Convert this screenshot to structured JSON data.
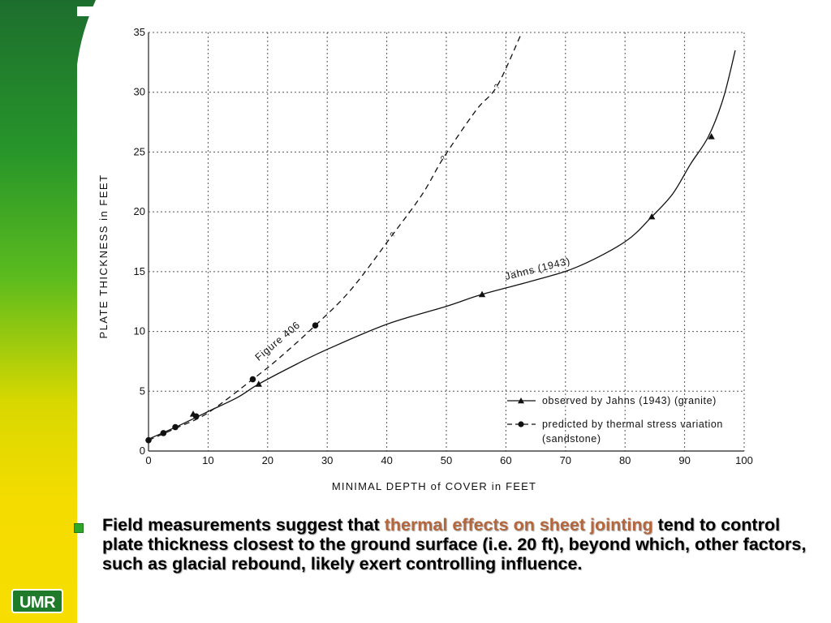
{
  "bullet": {
    "text_before": "Field measurements suggest that ",
    "highlight": "thermal effects on sheet jointing",
    "text_after": " tend to control plate thickness closest to the ground surface (i.e. 20 ft), beyond which, other factors, such as glacial rebound, likely exert controlling influence."
  },
  "logo": {
    "text": "UMR"
  },
  "colors": {
    "green_dark": "#1d6e2e",
    "green": "#2ea82a",
    "yellow": "#f5dc00",
    "highlight": "#b4663c",
    "bullet": "#2fa828"
  },
  "chart_data": {
    "type": "line",
    "xlabel": "MINIMAL DEPTH of COVER in FEET",
    "ylabel": "PLATE THICKNESS in FEET",
    "xlim": [
      0,
      100
    ],
    "ylim": [
      0,
      35
    ],
    "x_ticks": [
      0,
      10,
      20,
      30,
      40,
      50,
      60,
      70,
      80,
      90,
      100
    ],
    "y_ticks": [
      0,
      5,
      10,
      15,
      20,
      25,
      30,
      35
    ],
    "grid": true,
    "legend_position": "bottom-right",
    "series": [
      {
        "name": "observed by Jahns (1943) (granite)",
        "line_label": "Jahns (1943)",
        "style": "solid",
        "marker": "triangle",
        "curve": [
          [
            0,
            1
          ],
          [
            5,
            2.1
          ],
          [
            10,
            3.3
          ],
          [
            15,
            4.5
          ],
          [
            18.5,
            5.6
          ],
          [
            25,
            7.3
          ],
          [
            30,
            8.5
          ],
          [
            40,
            10.6
          ],
          [
            50,
            12.1
          ],
          [
            56,
            13.1
          ],
          [
            65,
            14.3
          ],
          [
            72,
            15.4
          ],
          [
            80,
            17.5
          ],
          [
            84.5,
            19.6
          ],
          [
            88,
            21.5
          ],
          [
            91,
            24
          ],
          [
            94,
            26.3
          ],
          [
            96.5,
            29.5
          ],
          [
            98.5,
            33.5
          ]
        ],
        "points": [
          [
            7.5,
            3.1
          ],
          [
            18.5,
            5.6
          ],
          [
            56,
            13.1
          ],
          [
            84.5,
            19.6
          ],
          [
            94.5,
            26.3
          ]
        ]
      },
      {
        "name": "predicted by thermal stress variation (sandstone)",
        "line_label": "Figure 406",
        "style": "dashed",
        "marker": "circle",
        "curve": [
          [
            0,
            0.9
          ],
          [
            5,
            2.0
          ],
          [
            10,
            3.2
          ],
          [
            17.5,
            6.0
          ],
          [
            22,
            7.8
          ],
          [
            28,
            10.5
          ],
          [
            34,
            13.5
          ],
          [
            41,
            18.1
          ],
          [
            46,
            21.5
          ],
          [
            49.5,
            24.5
          ],
          [
            55,
            28.5
          ],
          [
            58.5,
            30.5
          ],
          [
            62.5,
            34.8
          ]
        ],
        "points": [
          [
            0,
            0.9
          ],
          [
            2.5,
            1.5
          ],
          [
            4.5,
            2.0
          ],
          [
            8,
            2.9
          ],
          [
            17.5,
            6.0
          ],
          [
            28,
            10.5
          ]
        ],
        "question_marks": [
          [
            41,
            18.1
          ],
          [
            49.5,
            24.5
          ],
          [
            58.5,
            30.5
          ]
        ]
      }
    ]
  }
}
